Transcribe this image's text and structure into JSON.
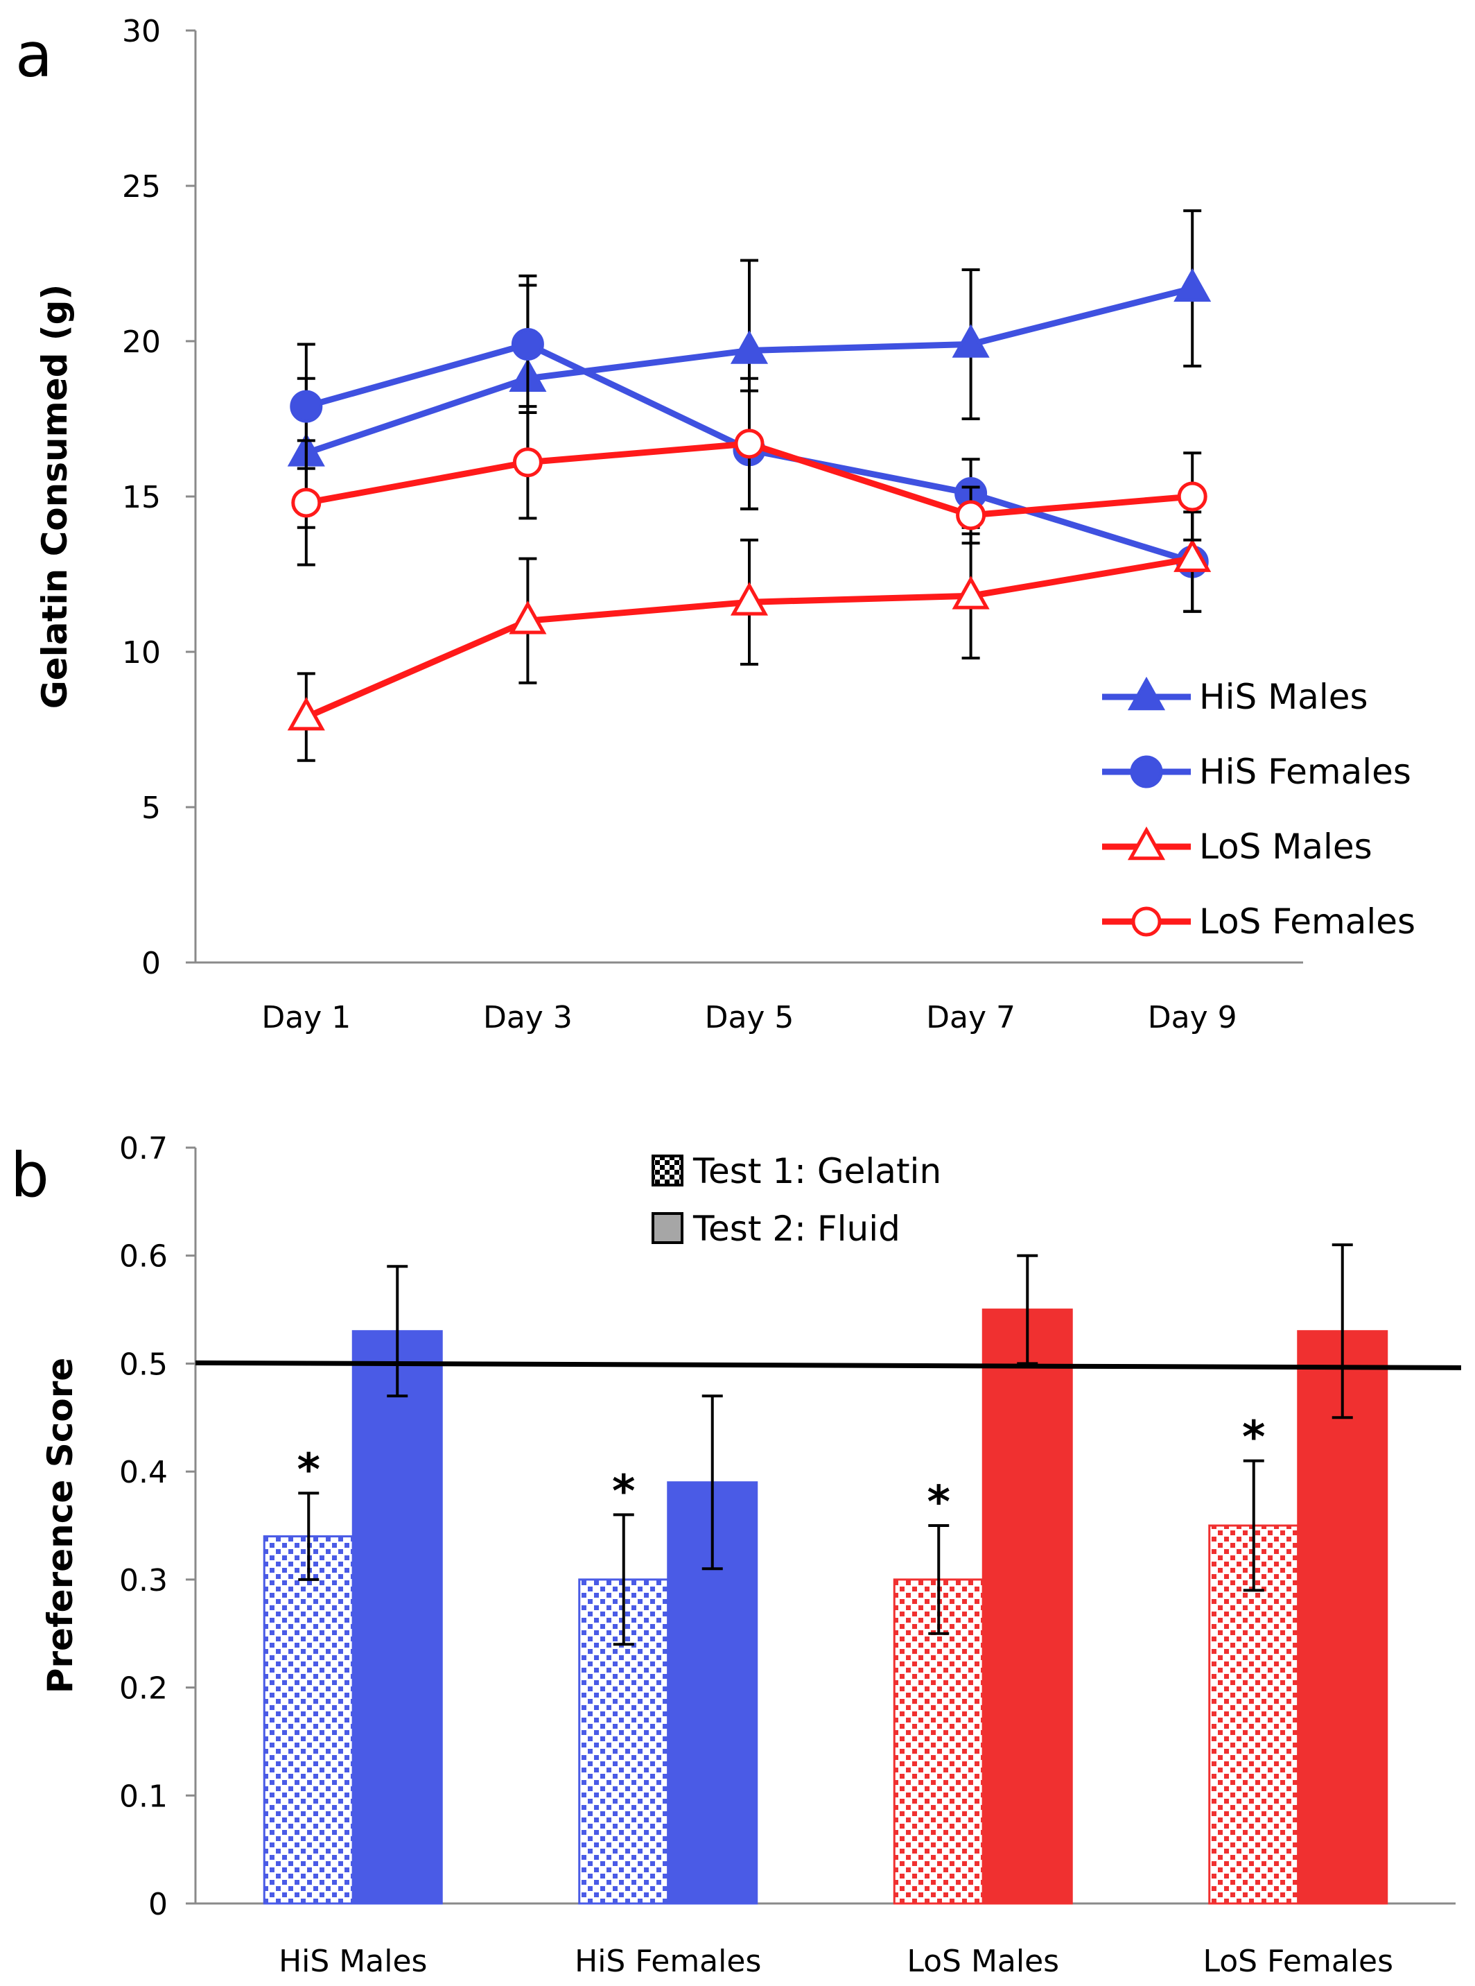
{
  "chart_data": [
    {
      "panel": "a",
      "type": "line",
      "ylabel": "Gelatin Consumed (g)",
      "ylim": [
        0,
        30
      ],
      "yticks": [
        "0",
        "5",
        "10",
        "15",
        "20",
        "25",
        "30"
      ],
      "categories": [
        "Day 1",
        "Day 3",
        "Day 5",
        "Day 7",
        "Day 9"
      ],
      "legend_position": "bottom-right",
      "series": [
        {
          "name": "HiS Males",
          "color": "#3F51E0",
          "marker": "triangle",
          "filled": true,
          "values": [
            16.4,
            18.8,
            19.7,
            19.9,
            21.7
          ],
          "errors": [
            2.4,
            3.0,
            2.9,
            2.4,
            2.5
          ]
        },
        {
          "name": "HiS Females",
          "color": "#3F51E0",
          "marker": "circle",
          "filled": true,
          "values": [
            17.9,
            19.9,
            16.5,
            15.1,
            12.9
          ],
          "errors": [
            2.0,
            2.2,
            1.9,
            1.1,
            1.6
          ]
        },
        {
          "name": "LoS Males",
          "color": "#FF1A1A",
          "marker": "triangle",
          "filled": false,
          "values": [
            7.9,
            11.0,
            11.6,
            11.8,
            13.0
          ],
          "errors": [
            1.4,
            2.0,
            2.0,
            2.0,
            1.7
          ]
        },
        {
          "name": "LoS Females",
          "color": "#FF1A1A",
          "marker": "circle",
          "filled": false,
          "values": [
            14.8,
            16.1,
            16.7,
            14.4,
            15.0
          ],
          "errors": [
            2.0,
            1.8,
            2.1,
            0.9,
            1.4
          ]
        }
      ]
    },
    {
      "panel": "b",
      "type": "bar",
      "ylabel": "Preference Score",
      "ylim": [
        0,
        0.7
      ],
      "yticks": [
        "0",
        "0.1",
        "0.2",
        "0.3",
        "0.4",
        "0.5",
        "0.6",
        "0.7"
      ],
      "reference_line": 0.5,
      "categories": [
        "HiS Males",
        "HiS Females",
        "LoS Males",
        "LoS Females"
      ],
      "category_colors": [
        "#4A5BE6",
        "#4A5BE6",
        "#F03030",
        "#F03030"
      ],
      "legend_position": "top-center",
      "series": [
        {
          "name": "Test 1: Gelatin",
          "pattern": "checker",
          "values": [
            0.34,
            0.3,
            0.3,
            0.35
          ],
          "errors": [
            0.04,
            0.06,
            0.05,
            0.06
          ],
          "annotations": [
            "*",
            "*",
            "*",
            "*"
          ]
        },
        {
          "name": "Test 2: Fluid",
          "pattern": "solid",
          "values": [
            0.53,
            0.39,
            0.55,
            0.53
          ],
          "errors": [
            0.06,
            0.08,
            0.05,
            0.08
          ],
          "annotations": [
            "",
            "",
            "",
            ""
          ]
        }
      ]
    }
  ]
}
